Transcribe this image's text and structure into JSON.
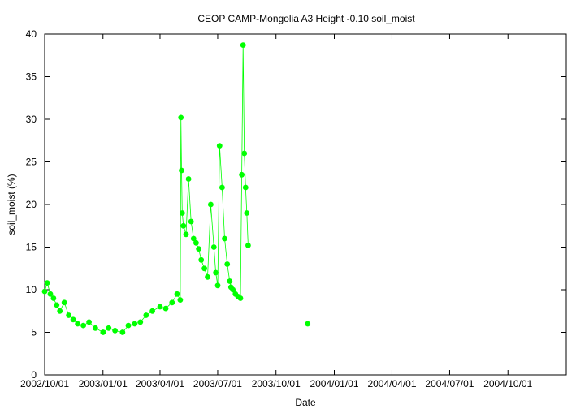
{
  "chart_data": {
    "type": "scatter",
    "title": "CEOP CAMP-Mongolia A3 Height -0.10 soil_moist",
    "xlabel": "Date",
    "ylabel": "soil_moist (%)",
    "xlim": [
      "2002-10-01",
      "2005-01-01"
    ],
    "ylim": [
      0,
      40
    ],
    "grid": false,
    "legend": "none",
    "color": "#00ff00",
    "x_tick_labels": [
      "2002/10/01",
      "2003/01/01",
      "2003/04/01",
      "2003/07/01",
      "2003/10/01",
      "2004/01/01",
      "2004/04/01",
      "2004/07/01",
      "2004/10/01"
    ],
    "x_tick_dates": [
      "2002-10-01",
      "2003-01-01",
      "2003-04-01",
      "2003-07-01",
      "2003-10-01",
      "2004-01-01",
      "2004-04-01",
      "2004-07-01",
      "2004-10-01"
    ],
    "y_ticks": [
      0,
      5,
      10,
      15,
      20,
      25,
      30,
      35,
      40
    ],
    "series": [
      {
        "x": [
          "2002-10-01",
          "2002-10-05",
          "2002-10-10",
          "2002-10-15",
          "2002-10-20",
          "2002-10-25",
          "2002-11-01",
          "2002-11-08",
          "2002-11-15",
          "2002-11-22",
          "2002-12-01",
          "2002-12-10",
          "2002-12-20",
          "2003-01-01",
          "2003-01-10",
          "2003-01-20",
          "2003-02-01",
          "2003-02-10",
          "2003-02-20",
          "2003-03-01",
          "2003-03-10",
          "2003-03-20",
          "2003-04-01",
          "2003-04-10",
          "2003-04-20",
          "2003-04-28",
          "2003-05-03",
          "2003-05-04",
          "2003-05-05",
          "2003-05-06",
          "2003-05-08",
          "2003-05-12",
          "2003-05-16",
          "2003-05-20",
          "2003-05-24",
          "2003-05-28",
          "2003-06-01",
          "2003-06-05",
          "2003-06-10",
          "2003-06-15",
          "2003-06-20",
          "2003-06-25",
          "2003-06-28",
          "2003-07-01",
          "2003-07-04",
          "2003-07-08",
          "2003-07-12",
          "2003-07-16",
          "2003-07-20",
          "2003-07-22",
          "2003-07-25",
          "2003-07-29",
          "2003-08-02",
          "2003-08-06",
          "2003-08-08",
          "2003-08-10",
          "2003-08-12",
          "2003-08-14",
          "2003-08-16",
          "2003-08-18",
          "2003-11-20"
        ],
        "y": [
          9.8,
          10.8,
          9.5,
          9.0,
          8.2,
          7.5,
          8.5,
          7.0,
          6.5,
          6.0,
          5.8,
          6.2,
          5.5,
          5.0,
          5.5,
          5.2,
          5.0,
          5.8,
          6.0,
          6.2,
          7.0,
          7.5,
          8.0,
          7.8,
          8.5,
          9.5,
          8.8,
          30.2,
          24.0,
          19.0,
          17.5,
          16.5,
          23.0,
          18.0,
          16.0,
          15.5,
          14.8,
          13.5,
          12.5,
          11.5,
          20.0,
          15.0,
          12.0,
          10.5,
          26.9,
          22.0,
          16.0,
          13.0,
          11.0,
          10.3,
          10.0,
          9.5,
          9.2,
          9.0,
          23.5,
          38.7,
          26.0,
          22.0,
          19.0,
          15.2,
          6.0
        ]
      }
    ]
  }
}
